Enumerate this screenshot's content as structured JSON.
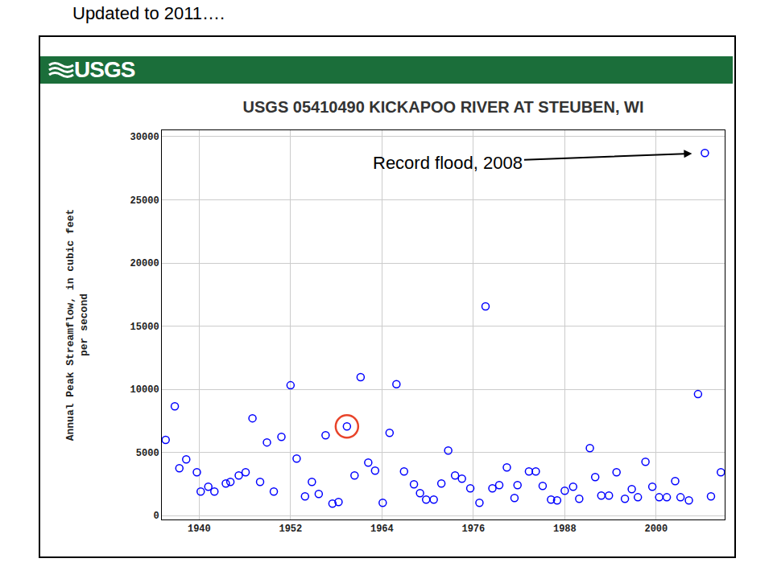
{
  "chart_data": {
    "type": "scatter",
    "title": "USGS 05410490 KICKAPOO RIVER AT STEUBEN, WI",
    "subtitle": "Updated to 2011….",
    "brand": "USGS",
    "y_label": "Annual Peak Streamflow, in cubic feet\nper second",
    "annotations": [
      {
        "text": "Record flood, 2008",
        "x": 2006.4,
        "y": 28700
      }
    ],
    "series": [
      {
        "color": "#0000ff",
        "marker": "circle-open",
        "x": [
          1935.6,
          1936.8,
          1937.4,
          1938.3,
          1939.7,
          1940.2,
          1941.2,
          1942.0,
          1943.5,
          1944.1,
          1945.2,
          1946.1,
          1947.0,
          1948.0,
          1948.9,
          1949.8,
          1950.8,
          1952.0,
          1952.8,
          1953.9,
          1954.8,
          1955.7,
          1956.6,
          1957.5,
          1958.3,
          1959.4,
          1960.4,
          1961.2,
          1962.2,
          1963.1,
          1964.1,
          1965.0,
          1965.9,
          1966.9,
          1968.2,
          1969.0,
          1969.8,
          1970.8,
          1971.8,
          1972.7,
          1973.6,
          1974.5,
          1975.6,
          1976.8,
          1977.6,
          1978.5,
          1979.4,
          1980.4,
          1981.4,
          1981.8,
          1983.3,
          1984.2,
          1985.1,
          1986.2,
          1987.0,
          1988.0,
          1989.1,
          1989.9,
          1991.3,
          1992.0,
          1992.8,
          1993.8,
          1994.8,
          1995.9,
          1996.8,
          1997.6,
          1998.6,
          1999.5,
          2000.4,
          2001.4,
          2002.5,
          2003.2,
          2004.3,
          2005.5,
          2006.4,
          2007.2,
          2008.5
        ],
        "values": [
          6000,
          8660,
          3760,
          4460,
          3440,
          1910,
          2290,
          1910,
          2550,
          2680,
          3180,
          3440,
          7710,
          2680,
          5800,
          1910,
          6240,
          10320,
          4520,
          1530,
          2680,
          1720,
          6370,
          960,
          1080,
          7070,
          3180,
          10960,
          4200,
          3570,
          1020,
          6560,
          10410,
          3500,
          2480,
          1780,
          1270,
          1270,
          2550,
          5160,
          3180,
          2930,
          2170,
          1020,
          16560,
          2170,
          2420,
          3820,
          1400,
          2420,
          3500,
          3500,
          2360,
          1270,
          1210,
          1970,
          2290,
          1340,
          5350,
          3060,
          1590,
          1590,
          3440,
          1340,
          2100,
          1460,
          4270,
          2290,
          1460,
          1460,
          2740,
          1460,
          1210,
          9620,
          28700,
          1530,
          3440
        ]
      },
      {
        "color": "#e8442a",
        "marker": "ring",
        "x": [
          1959.4
        ],
        "values": [
          7070
        ]
      }
    ],
    "xlim": [
      1935.1,
      2009.0
    ],
    "xticks": [
      1940,
      1952,
      1964,
      1976,
      1988,
      2000
    ],
    "ylim": [
      -300,
      30500
    ],
    "yticks": [
      0,
      5000,
      10000,
      15000,
      20000,
      25000,
      30000
    ],
    "grid": true
  }
}
